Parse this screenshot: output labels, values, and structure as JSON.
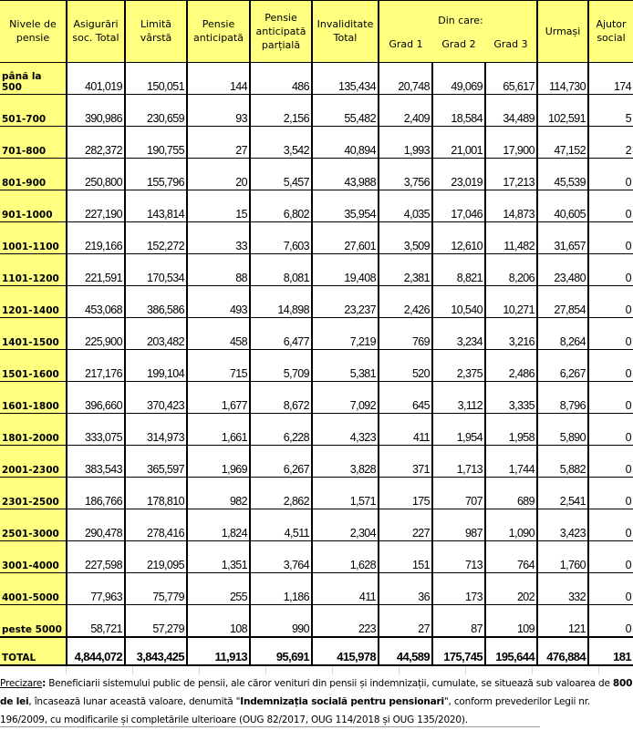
{
  "table": {
    "headers": {
      "level": "Nivele de pensie",
      "asig_total": "Asigurări soc. Total",
      "limita": "Limită vârstă",
      "anticipata": "Pensie anticipată",
      "anticipata_partiala": "Pensie anticipată parțială",
      "invaliditate": "Invaliditate Total",
      "din_care": "Din care:",
      "grad1": "Grad 1",
      "grad2": "Grad 2",
      "grad3": "Grad 3",
      "urmasi": "Urmași",
      "ajutor": "Ajutor social"
    },
    "header_color": "#ffff80",
    "rows": [
      [
        "până la 500",
        "401,019",
        "150,051",
        "144",
        "486",
        "135,434",
        "20,748",
        "49,069",
        "65,617",
        "114,730",
        "174"
      ],
      [
        "501-700",
        "390,986",
        "230,659",
        "93",
        "2,156",
        "55,482",
        "2,409",
        "18,584",
        "34,489",
        "102,591",
        "5"
      ],
      [
        "701-800",
        "282,372",
        "190,755",
        "27",
        "3,542",
        "40,894",
        "1,993",
        "21,001",
        "17,900",
        "47,152",
        "2"
      ],
      [
        "801-900",
        "250,800",
        "155,796",
        "20",
        "5,457",
        "43,988",
        "3,756",
        "23,019",
        "17,213",
        "45,539",
        "0"
      ],
      [
        "901-1000",
        "227,190",
        "143,814",
        "15",
        "6,802",
        "35,954",
        "4,035",
        "17,046",
        "14,873",
        "40,605",
        "0"
      ],
      [
        "1001-1100",
        "219,166",
        "152,272",
        "33",
        "7,603",
        "27,601",
        "3,509",
        "12,610",
        "11,482",
        "31,657",
        "0"
      ],
      [
        "1101-1200",
        "221,591",
        "170,534",
        "88",
        "8,081",
        "19,408",
        "2,381",
        "8,821",
        "8,206",
        "23,480",
        "0"
      ],
      [
        "1201-1400",
        "453,068",
        "386,586",
        "493",
        "14,898",
        "23,237",
        "2,426",
        "10,540",
        "10,271",
        "27,854",
        "0"
      ],
      [
        "1401-1500",
        "225,900",
        "203,482",
        "458",
        "6,477",
        "7,219",
        "769",
        "3,234",
        "3,216",
        "8,264",
        "0"
      ],
      [
        "1501-1600",
        "217,176",
        "199,104",
        "715",
        "5,709",
        "5,381",
        "520",
        "2,375",
        "2,486",
        "6,267",
        "0"
      ],
      [
        "1601-1800",
        "396,660",
        "370,423",
        "1,677",
        "8,672",
        "7,092",
        "645",
        "3,112",
        "3,335",
        "8,796",
        "0"
      ],
      [
        "1801-2000",
        "333,075",
        "314,973",
        "1,661",
        "6,228",
        "4,323",
        "411",
        "1,954",
        "1,958",
        "5,890",
        "0"
      ],
      [
        "2001-2300",
        "383,543",
        "365,597",
        "1,969",
        "6,267",
        "3,828",
        "371",
        "1,713",
        "1,744",
        "5,882",
        "0"
      ],
      [
        "2301-2500",
        "186,766",
        "178,810",
        "982",
        "2,862",
        "1,571",
        "175",
        "707",
        "689",
        "2,541",
        "0"
      ],
      [
        "2501-3000",
        "290,478",
        "278,416",
        "1,824",
        "4,511",
        "2,304",
        "227",
        "987",
        "1,090",
        "3,423",
        "0"
      ],
      [
        "3001-4000",
        "227,598",
        "219,095",
        "1,351",
        "3,764",
        "1,628",
        "151",
        "713",
        "764",
        "1,760",
        "0"
      ],
      [
        "4001-5000",
        "77,963",
        "75,779",
        "255",
        "1,186",
        "411",
        "36",
        "173",
        "202",
        "332",
        "0"
      ],
      [
        "peste 5000",
        "58,721",
        "57,279",
        "108",
        "990",
        "223",
        "27",
        "87",
        "109",
        "121",
        "0"
      ]
    ],
    "total": [
      "TOTAL",
      "4,844,072",
      "3,843,425",
      "11,913",
      "95,691",
      "415,978",
      "44,589",
      "175,745",
      "195,644",
      "476,884",
      "181"
    ]
  },
  "note": {
    "label": "Precizare",
    "colon": ":",
    "t1": " Beneficiarii sistemului public de pensii, ale căror venituri din pensii și indemnizații, cumulate, se situează sub valoarea de ",
    "b1": "800 de lei",
    "t2": ", încasează  lunar această valoare, denumită \"",
    "b2": "Indemnizația socială pentru pensionari",
    "t3": "\", conform prevederilor Legii nr. 196/2009, cu modificarile și completările ulterioare (OUG 82/2017, OUG 114/2018 și OUG 135/2020)."
  }
}
